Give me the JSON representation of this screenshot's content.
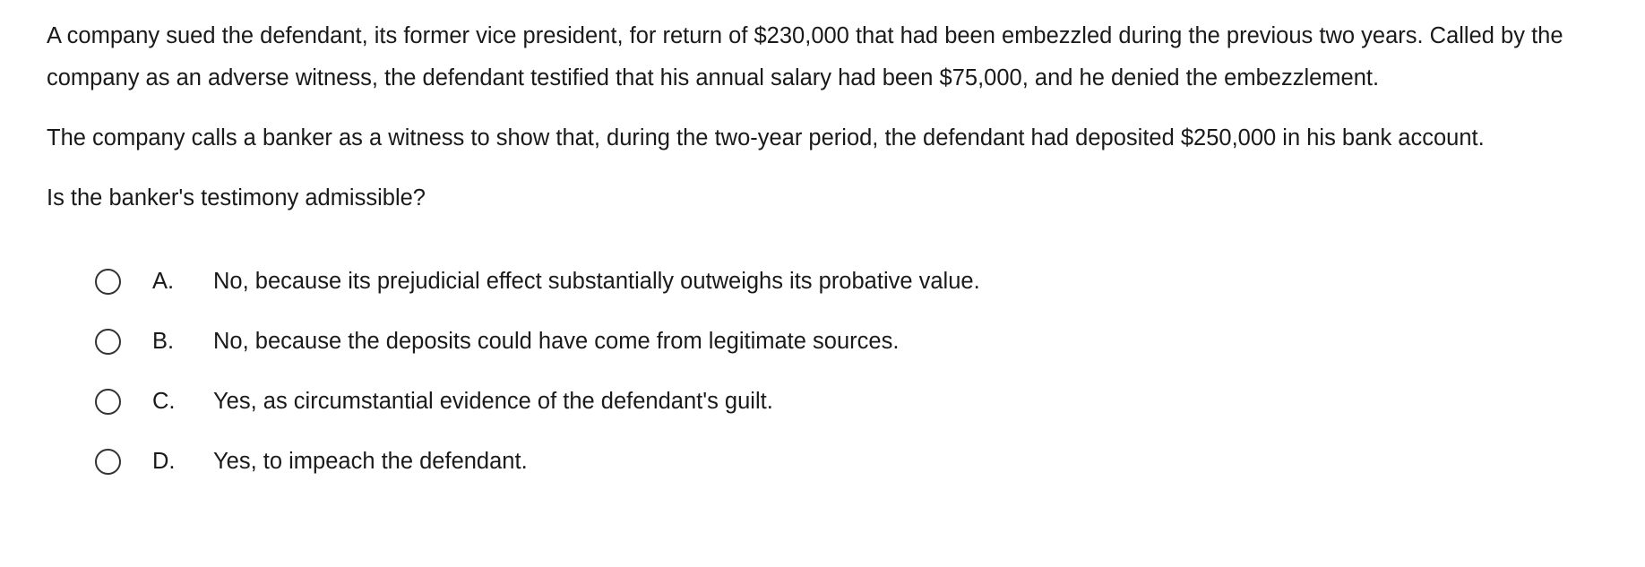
{
  "question": {
    "paragraphs": [
      "A company sued the defendant, its former vice president, for return of $230,000 that had been embezzled during the previous two years.  Called by the company as an adverse witness, the defendant testified that his annual salary had been $75,000, and he denied the embezzlement.",
      "The company calls a banker as a witness to show that, during the two-year period, the defendant had deposited $250,000 in his bank account."
    ],
    "prompt": "Is the banker's testimony admissible?",
    "choices": [
      {
        "letter": "A.",
        "text": "No, because its prejudicial effect substantially outweighs its probative value."
      },
      {
        "letter": "B.",
        "text": "No, because the deposits could have come from legitimate sources."
      },
      {
        "letter": "C.",
        "text": "Yes, as circumstantial evidence of the defendant's guilt."
      },
      {
        "letter": "D.",
        "text": "Yes, to impeach the defendant."
      }
    ]
  }
}
